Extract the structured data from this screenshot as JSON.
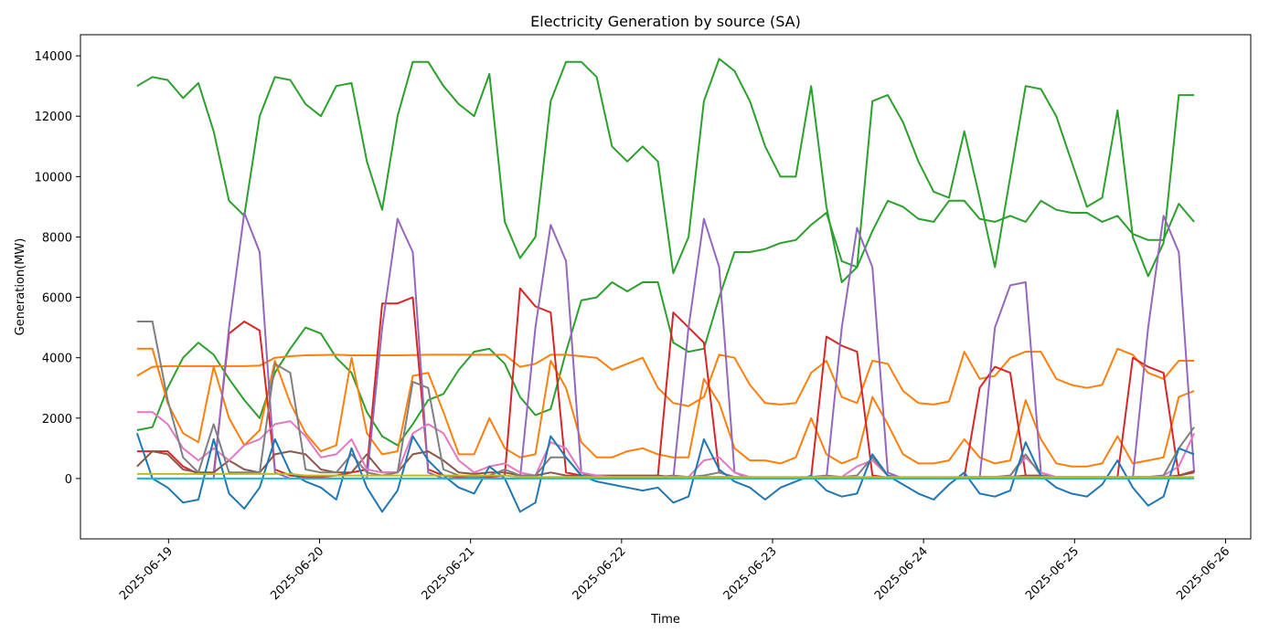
{
  "chart_data": {
    "type": "line",
    "title": "Electricity Generation by source (SA)",
    "xlabel": "Time",
    "ylabel": "Generation(MW)",
    "grid": false,
    "legend": "none",
    "x_start": "2025-06-18T19:00",
    "x_end": "2025-06-25T19:00",
    "xlim": [
      "2025-06-18T10:00",
      "2025-06-26T04:00"
    ],
    "ylim": [
      -2000,
      14700
    ],
    "x_ticks": [
      "2025-06-19",
      "2025-06-20",
      "2025-06-21",
      "2025-06-22",
      "2025-06-23",
      "2025-06-24",
      "2025-06-25",
      "2025-06-26"
    ],
    "y_ticks": [
      0,
      2000,
      4000,
      6000,
      8000,
      10000,
      12000,
      14000
    ],
    "series": [
      {
        "color": "#2ca02c",
        "values": [
          13000,
          13300,
          13200,
          12600,
          13100,
          11500,
          9200,
          8700,
          12000,
          13300,
          13200,
          12400,
          12000,
          13000,
          13100,
          10500,
          8900,
          12000,
          13800,
          13800,
          13000,
          12400,
          12000,
          13400,
          8500,
          7300,
          8000,
          12500,
          13800,
          13800,
          13300,
          11000,
          10500,
          11000,
          10500,
          6800,
          8000,
          12500,
          13900,
          13500,
          12500,
          11000,
          10000,
          10000,
          13000,
          9000,
          6500,
          7000,
          12500,
          12700,
          11800,
          10500,
          9500,
          9300,
          11500,
          9300,
          7000,
          10000,
          13000,
          12900,
          12000,
          10500,
          9000,
          9300,
          12200,
          8000,
          6700,
          7800,
          12700,
          12700
        ]
      },
      {
        "color": "#2ca02c",
        "values": [
          1600,
          1700,
          3000,
          4000,
          4500,
          4100,
          3300,
          2600,
          2000,
          3500,
          4300,
          5000,
          4800,
          4000,
          3500,
          2200,
          1400,
          1100,
          1800,
          2600,
          2800,
          3600,
          4200,
          4300,
          3800,
          2700,
          2100,
          2300,
          4200,
          5900,
          6000,
          6500,
          6200,
          6500,
          6500,
          4500,
          4200,
          4300,
          6000,
          7500,
          7500,
          7600,
          7800,
          7900,
          8400,
          8800,
          7200,
          7000,
          8200,
          9200,
          9000,
          8600,
          8500,
          9200,
          9200,
          8600,
          8500,
          8700,
          8500,
          9200,
          8900,
          8800,
          8800,
          8500,
          8700,
          8100,
          7900,
          7900,
          9100,
          8500
        ]
      },
      {
        "color": "#ff7f0e",
        "values": [
          3400,
          3700,
          3720,
          3720,
          3720,
          3720,
          3720,
          3720,
          3740,
          4000,
          4050,
          4080,
          4090,
          4100,
          4080,
          4080,
          4080,
          4080,
          4090,
          4100,
          4100,
          4100,
          4100,
          4100,
          4100,
          3700,
          3800,
          4100,
          4100,
          4050,
          4000,
          3600,
          3800,
          4000,
          3000,
          2500,
          2400,
          2700,
          4100,
          4000,
          3100,
          2500,
          2450,
          2500,
          3500,
          3900,
          2700,
          2500,
          3900,
          3800,
          2900,
          2500,
          2450,
          2550,
          4200,
          3300,
          3400,
          4000,
          4200,
          4200,
          3300,
          3100,
          3000,
          3100,
          4300,
          4100,
          3500,
          3300,
          3900,
          3900
        ]
      },
      {
        "color": "#ff7f0e",
        "values": [
          4300,
          4300,
          2500,
          1500,
          1200,
          3700,
          2000,
          1100,
          1600,
          3900,
          2500,
          1500,
          900,
          1100,
          4000,
          1500,
          800,
          900,
          3400,
          3500,
          2200,
          800,
          800,
          2000,
          1000,
          700,
          800,
          3900,
          3000,
          1200,
          700,
          700,
          900,
          1000,
          800,
          700,
          700,
          3300,
          2500,
          1000,
          600,
          600,
          500,
          700,
          2000,
          800,
          500,
          700,
          2700,
          1800,
          800,
          500,
          500,
          600,
          1300,
          700,
          500,
          600,
          2600,
          1300,
          500,
          400,
          400,
          500,
          1400,
          500,
          600,
          700,
          2700,
          2900
        ]
      },
      {
        "color": "#d62728",
        "values": [
          900,
          900,
          900,
          400,
          150,
          150,
          4800,
          5200,
          4900,
          300,
          100,
          50,
          50,
          100,
          200,
          300,
          5800,
          5800,
          6000,
          300,
          100,
          50,
          30,
          50,
          100,
          6300,
          5700,
          5500,
          200,
          100,
          50,
          30,
          20,
          50,
          100,
          5500,
          5000,
          4500,
          200,
          50,
          20,
          10,
          10,
          20,
          50,
          4700,
          4400,
          4200,
          100,
          30,
          10,
          10,
          10,
          30,
          50,
          3000,
          3700,
          3500,
          100,
          20,
          10,
          5,
          5,
          20,
          50,
          4000,
          3700,
          3500,
          100,
          200
        ]
      },
      {
        "color": "#9467bd",
        "values": [
          0,
          0,
          0,
          0,
          0,
          0,
          5000,
          8800,
          7500,
          200,
          0,
          0,
          0,
          0,
          0,
          0,
          5000,
          8600,
          7500,
          200,
          0,
          0,
          0,
          0,
          0,
          0,
          5000,
          8400,
          7200,
          200,
          0,
          0,
          0,
          0,
          0,
          0,
          5000,
          8600,
          7000,
          200,
          0,
          0,
          0,
          0,
          0,
          0,
          5000,
          8300,
          7000,
          200,
          0,
          0,
          0,
          0,
          0,
          0,
          5000,
          6400,
          6500,
          200,
          0,
          0,
          0,
          0,
          0,
          0,
          5000,
          8700,
          7500,
          200
        ]
      },
      {
        "color": "#8c564b",
        "values": [
          400,
          900,
          800,
          300,
          200,
          200,
          600,
          300,
          200,
          800,
          900,
          800,
          300,
          200,
          200,
          800,
          200,
          200,
          800,
          900,
          600,
          200,
          150,
          200,
          200,
          100,
          100,
          200,
          100,
          100,
          100,
          100,
          100,
          100,
          100,
          50,
          50,
          50,
          50,
          50,
          50,
          30,
          30,
          30,
          30,
          30,
          30,
          30,
          30,
          30,
          30,
          30,
          30,
          30,
          50,
          50,
          50,
          50,
          100,
          100,
          50,
          50,
          50,
          50,
          50,
          50,
          50,
          50,
          100,
          250
        ]
      },
      {
        "color": "#e377c2",
        "values": [
          2200,
          2200,
          1800,
          1000,
          600,
          1000,
          600,
          1100,
          1300,
          1800,
          1900,
          1400,
          700,
          800,
          1300,
          300,
          200,
          200,
          1500,
          1800,
          1500,
          600,
          200,
          400,
          500,
          200,
          100,
          1200,
          1000,
          200,
          100,
          50,
          50,
          50,
          50,
          50,
          50,
          600,
          700,
          200,
          50,
          30,
          30,
          30,
          30,
          30,
          50,
          400,
          600,
          100,
          30,
          30,
          20,
          20,
          30,
          30,
          50,
          100,
          700,
          200,
          50,
          30,
          20,
          20,
          30,
          30,
          50,
          100,
          400,
          1500
        ]
      },
      {
        "color": "#7f7f7f",
        "values": [
          5200,
          5200,
          2600,
          700,
          200,
          1800,
          200,
          200,
          200,
          3800,
          3500,
          300,
          200,
          200,
          800,
          200,
          100,
          200,
          3200,
          3000,
          300,
          100,
          50,
          100,
          300,
          100,
          100,
          700,
          700,
          100,
          50,
          30,
          30,
          30,
          50,
          100,
          50,
          100,
          200,
          50,
          30,
          30,
          30,
          30,
          50,
          100,
          50,
          100,
          700,
          100,
          30,
          30,
          20,
          20,
          30,
          50,
          50,
          100,
          800,
          100,
          30,
          30,
          20,
          20,
          30,
          50,
          50,
          100,
          1000,
          1700
        ]
      },
      {
        "color": "#1f77b4",
        "values": [
          1500,
          0,
          -300,
          -800,
          -700,
          1300,
          -500,
          -1000,
          -300,
          1300,
          200,
          -100,
          -300,
          -700,
          1000,
          -300,
          -1100,
          -400,
          1400,
          600,
          100,
          -300,
          -500,
          400,
          0,
          -1100,
          -800,
          1400,
          700,
          100,
          -100,
          -200,
          -300,
          -400,
          -300,
          -800,
          -600,
          1300,
          300,
          -100,
          -300,
          -700,
          -300,
          -100,
          100,
          -400,
          -600,
          -500,
          800,
          100,
          -200,
          -500,
          -700,
          -200,
          200,
          -500,
          -600,
          -400,
          1200,
          100,
          -300,
          -500,
          -600,
          -200,
          600,
          -300,
          -900,
          -600,
          1000,
          800
        ]
      },
      {
        "color": "#17becf",
        "values": [
          0,
          0,
          0,
          0,
          0,
          0,
          0,
          0,
          0,
          0,
          0,
          0,
          0,
          0,
          0,
          0,
          0,
          0,
          0,
          0,
          0,
          0,
          0,
          0,
          0,
          0,
          0,
          0,
          0,
          0,
          0,
          0,
          0,
          0,
          0,
          0,
          0,
          0,
          0,
          0,
          0,
          0,
          0,
          0,
          0,
          0,
          0,
          0,
          0,
          0,
          0,
          0,
          0,
          0,
          0,
          0,
          0,
          0,
          0,
          0,
          0,
          0,
          0,
          0,
          0,
          0,
          0,
          0,
          0,
          0
        ]
      },
      {
        "color": "#bcbd22",
        "values": [
          150,
          150,
          150,
          150,
          150,
          150,
          150,
          150,
          150,
          150,
          150,
          100,
          100,
          100,
          100,
          100,
          100,
          100,
          100,
          100,
          100,
          100,
          100,
          100,
          100,
          50,
          50,
          50,
          50,
          50,
          50,
          50,
          50,
          50,
          50,
          50,
          50,
          50,
          50,
          50,
          50,
          50,
          50,
          50,
          50,
          50,
          50,
          50,
          50,
          50,
          50,
          50,
          50,
          50,
          50,
          50,
          50,
          50,
          50,
          50,
          50,
          50,
          50,
          50,
          50,
          50,
          50,
          50,
          50,
          50
        ]
      }
    ]
  }
}
